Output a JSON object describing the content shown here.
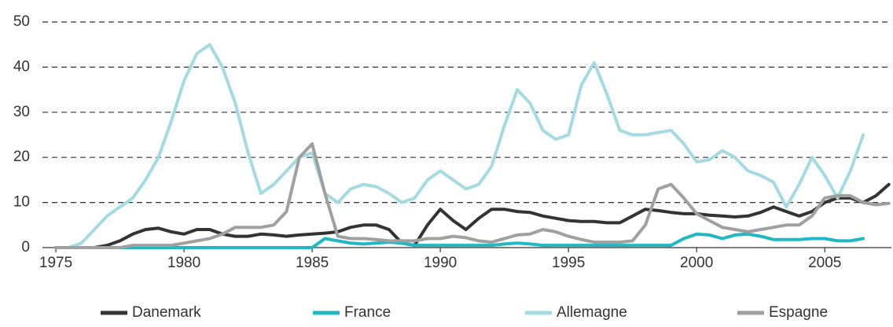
{
  "chart_data": {
    "type": "line",
    "x": [
      1975,
      1975.5,
      1976,
      1976.5,
      1977,
      1977.5,
      1978,
      1978.5,
      1979,
      1979.5,
      1980,
      1980.5,
      1981,
      1981.5,
      1982,
      1982.5,
      1983,
      1983.5,
      1984,
      1984.5,
      1985,
      1985.5,
      1986,
      1986.5,
      1987,
      1987.5,
      1988,
      1988.5,
      1989,
      1989.5,
      1990,
      1990.5,
      1991,
      1991.5,
      1992,
      1992.5,
      1993,
      1993.5,
      1994,
      1994.5,
      1995,
      1995.5,
      1996,
      1996.5,
      1997,
      1997.5,
      1998,
      1998.5,
      1999,
      1999.5,
      2000,
      2000.5,
      2001,
      2001.5,
      2002,
      2002.5,
      2003,
      2003.5,
      2004,
      2004.5,
      2005,
      2005.5,
      2006,
      2006.5,
      2007,
      2007.5
    ],
    "series": [
      {
        "name": "Danemark",
        "color": "#333333",
        "values": [
          0,
          0,
          0,
          0,
          0.5,
          1.5,
          3,
          4,
          4.3,
          3.5,
          3,
          4,
          4,
          3,
          2.5,
          2.5,
          3,
          2.8,
          2.5,
          2.8,
          3,
          3.2,
          3.5,
          4.5,
          5,
          5,
          4,
          1,
          0.5,
          5,
          8.5,
          6,
          4,
          6.5,
          8.5,
          8.5,
          8,
          7.8,
          7,
          6.5,
          6,
          5.8,
          5.8,
          5.5,
          5.5,
          7,
          8.5,
          8.2,
          7.8,
          7.5,
          7.5,
          7.2,
          7,
          6.8,
          7,
          7.8,
          9,
          8,
          7,
          8,
          10,
          11,
          11,
          10,
          11.5,
          14
        ]
      },
      {
        "name": "France",
        "color": "#1fb8c4",
        "values": [
          0,
          0,
          0,
          0,
          0,
          0,
          0,
          0,
          0,
          0,
          0,
          0,
          0,
          0,
          0,
          0,
          0,
          0,
          0,
          0,
          0,
          2,
          1.5,
          1,
          0.8,
          1,
          1.2,
          1,
          0.5,
          0.5,
          0.5,
          0.5,
          0.5,
          0.5,
          0.5,
          0.8,
          1,
          0.8,
          0.5,
          0.5,
          0.5,
          0.5,
          0.5,
          0.5,
          0.5,
          0.5,
          0.5,
          0.5,
          0.5,
          2,
          3,
          2.8,
          2,
          2.8,
          3,
          2.5,
          1.8,
          1.8,
          1.8,
          2,
          2,
          1.5,
          1.5,
          2,
          null,
          null
        ]
      },
      {
        "name": "Allemagne",
        "color": "#a4dbe3",
        "values": [
          0,
          0,
          1,
          4,
          7,
          9,
          11,
          15,
          20,
          28,
          37,
          43,
          45,
          40,
          32,
          21,
          12,
          14,
          17,
          20,
          21,
          12,
          10,
          13,
          14,
          13.5,
          12,
          10,
          11,
          15,
          17,
          15,
          13,
          14,
          18,
          27,
          35,
          32,
          26,
          24,
          25,
          36,
          41,
          34,
          26,
          25,
          25,
          25.5,
          26,
          23,
          19,
          19.5,
          21.5,
          20,
          17,
          16,
          14.5,
          9,
          14,
          20,
          16,
          11,
          17,
          25,
          null,
          null
        ]
      },
      {
        "name": "Espagne",
        "color": "#a0a0a0",
        "values": [
          0,
          0,
          0,
          0,
          0,
          0,
          0.5,
          0.5,
          0.5,
          0.5,
          1,
          1.5,
          2,
          3,
          4.5,
          4.5,
          4.5,
          5,
          8,
          20,
          23,
          12,
          2.5,
          2,
          2,
          1.8,
          1.5,
          1.5,
          1.5,
          2,
          2,
          2.5,
          2.2,
          1.5,
          1.2,
          2,
          2.8,
          3,
          4,
          3.5,
          2.5,
          1.8,
          1.2,
          1.2,
          1.2,
          1.5,
          5,
          13,
          14,
          11,
          7.5,
          6,
          4.5,
          4,
          3.5,
          4,
          4.5,
          5,
          5,
          7,
          11,
          11.5,
          11.5,
          10,
          9.5,
          9.8
        ]
      }
    ],
    "xlim": [
      1974.6,
      2007.6
    ],
    "xticks": [
      1975,
      1980,
      1985,
      1990,
      1995,
      2000,
      2005
    ],
    "ylim": [
      0,
      50
    ],
    "yticks": [
      0,
      10,
      20,
      30,
      40,
      50
    ],
    "grid": true,
    "legend": "bottom"
  }
}
